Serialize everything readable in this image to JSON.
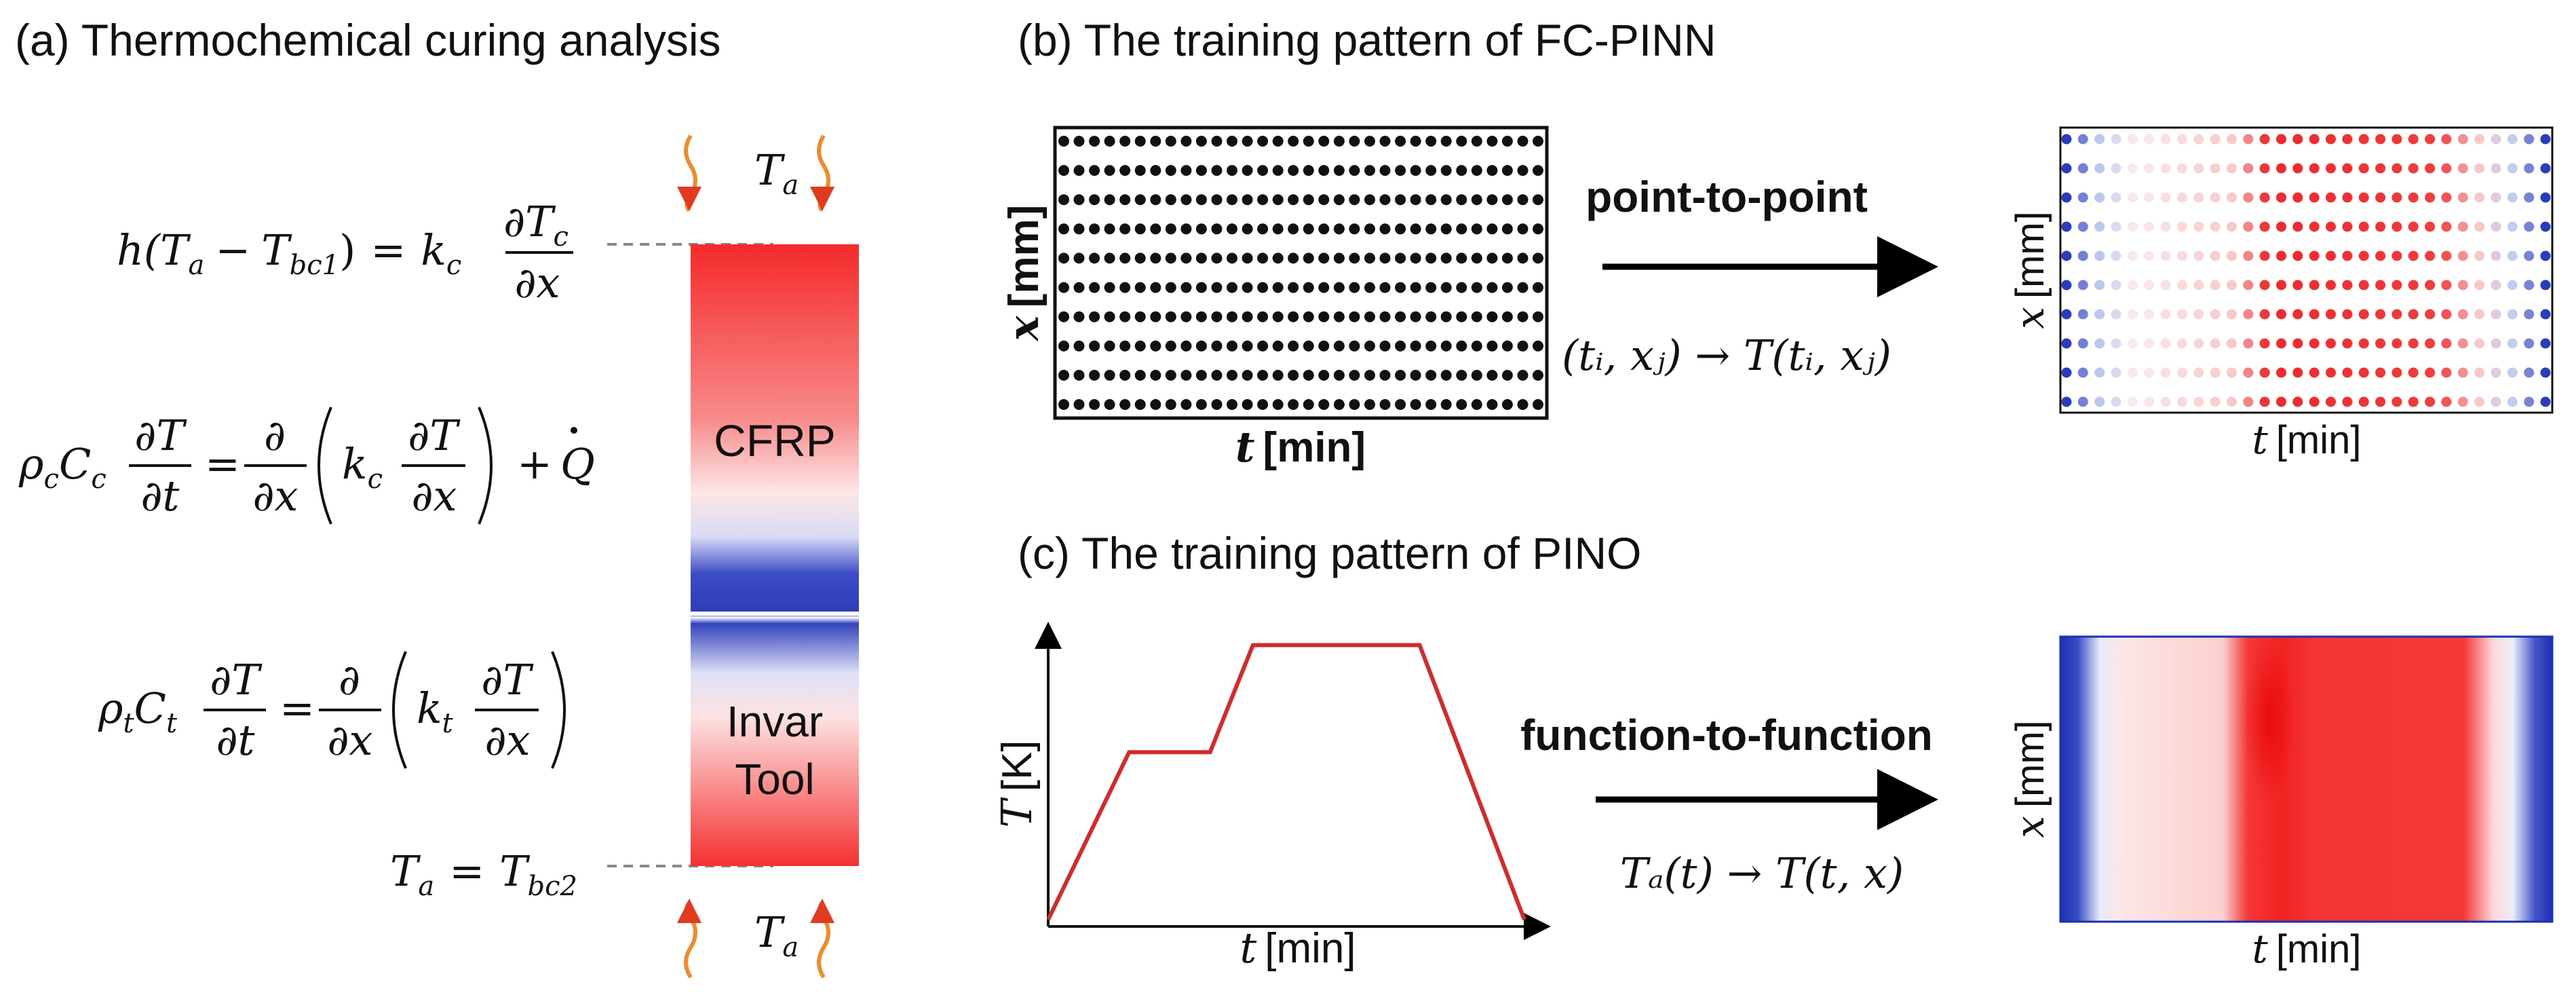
{
  "panel_a": {
    "title": "(a) Thermochemical curing analysis",
    "eq_bc1": {
      "h": "h(",
      "Ta": "T",
      "Ta_sub": "a",
      "minus": "−",
      "Tbc": "T",
      "Tbc_sub": "bc1",
      "close": ")",
      "eq": "=",
      "k": "k",
      "k_sub": "c",
      "num": "∂T",
      "num_sub": "c",
      "den": "∂x"
    },
    "eq_heat_c": {
      "rho": "ρ",
      "rho_sub": "c",
      "C": "C",
      "C_sub": "c",
      "num1": "∂T",
      "den1": "∂t",
      "eq": "=",
      "num2": "∂",
      "den2": "∂x",
      "k": "k",
      "k_sub": "c",
      "num3": "∂T",
      "den3": "∂x",
      "plus": "+",
      "Q": "Q"
    },
    "eq_heat_t": {
      "rho": "ρ",
      "rho_sub": "t",
      "C": "C",
      "C_sub": "t",
      "num1": "∂T",
      "den1": "∂t",
      "eq": "=",
      "num2": "∂",
      "den2": "∂x",
      "k": "k",
      "k_sub": "t",
      "num3": "∂T",
      "den3": "∂x"
    },
    "eq_bc2": {
      "Ta": "T",
      "Ta_sub": "a",
      "eq": "=",
      "Tbc": "T",
      "Tbc_sub": "bc2"
    },
    "ambient_label": {
      "T": "T",
      "sub": "a"
    },
    "cfrp_label": "CFRP",
    "tool_label_1": "Invar",
    "tool_label_2": "Tool"
  },
  "panel_b": {
    "title": "(b) The training pattern of FC-PINN",
    "xlabel_var": "t",
    "xlabel_unit": "[min]",
    "ylabel_var": "x",
    "ylabel_unit": "[mm]",
    "arrow_label": "point-to-point",
    "mapping": "(tᵢ, xⱼ) → T(tᵢ, xⱼ)",
    "out_xlabel_var": "t",
    "out_xlabel_unit": "[min]",
    "out_ylabel_var": "x",
    "out_ylabel_unit": "[mm]"
  },
  "panel_c": {
    "title": "(c) The training pattern of PINO",
    "xlabel_var": "t",
    "xlabel_unit": "[min]",
    "ylabel_var": "T",
    "ylabel_unit": "[K]",
    "arrow_label": "function-to-function",
    "mapping": "Tₐ(t) → T(t, x)",
    "out_xlabel_var": "t",
    "out_xlabel_unit": "[min]",
    "out_ylabel_var": "x",
    "out_ylabel_unit": "[mm]"
  },
  "chart_data": {
    "type": "line",
    "title": "(c) The training pattern of PINO",
    "xlabel": "t [min]",
    "ylabel": "T [K]",
    "x": [
      0,
      0.17,
      0.34,
      0.43,
      0.78,
      1.0
    ],
    "y": [
      0,
      0.61,
      0.61,
      1.0,
      1.0,
      0
    ],
    "xlim": [
      0,
      1.05
    ],
    "ylim": [
      0,
      1.1
    ],
    "grid": false,
    "color": "#d42a2a"
  },
  "colors": {
    "hot": "#f52525",
    "cold": "#2f3fb8",
    "neutral": "#ffffff",
    "dash": "#888888",
    "arrow": "#000000",
    "flame": "#f08a2a"
  }
}
